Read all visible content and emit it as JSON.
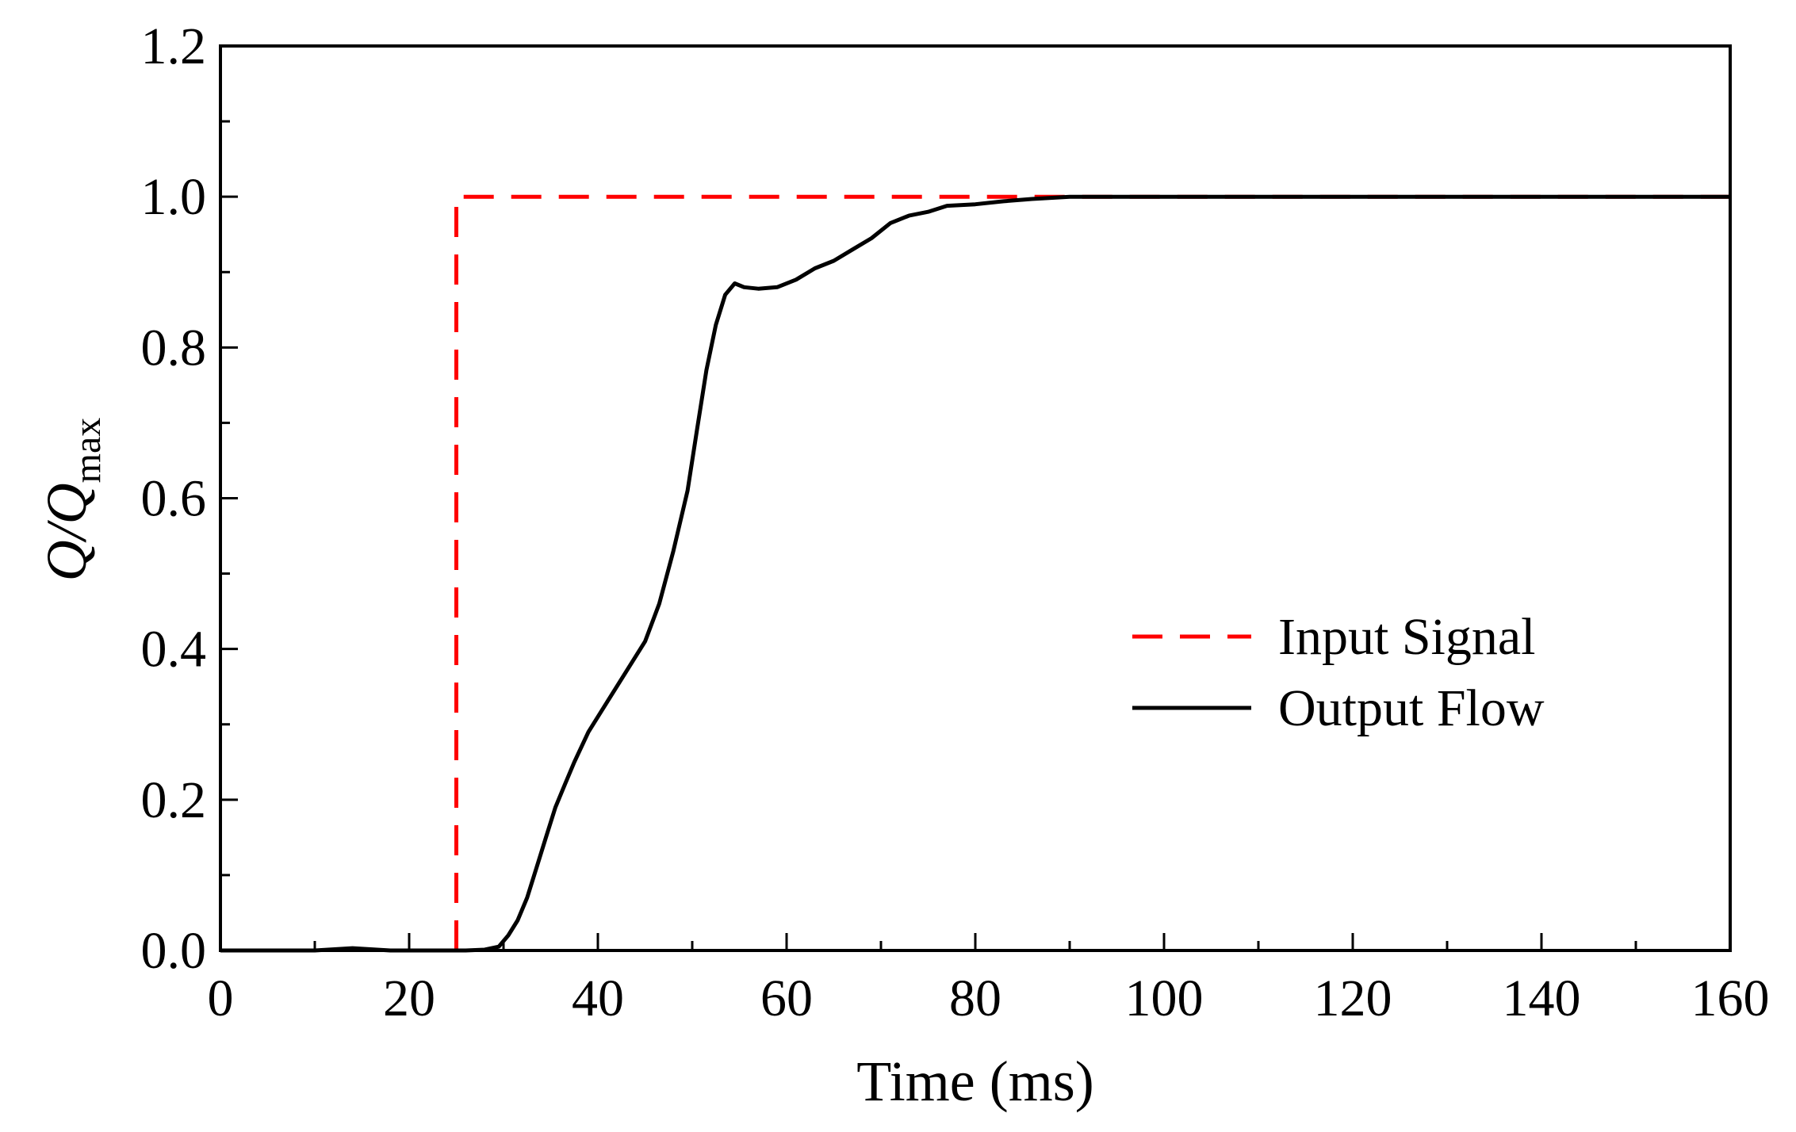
{
  "chart_data": {
    "type": "line",
    "title": "",
    "xlabel": "Time (ms)",
    "ylabel": {
      "main": "Q/Q",
      "subscript": "max"
    },
    "xlim": [
      0,
      160
    ],
    "ylim": [
      0,
      1.2
    ],
    "x_ticks": [
      0,
      20,
      40,
      60,
      80,
      100,
      120,
      140,
      160
    ],
    "x_tick_labels": [
      "0",
      "20",
      "40",
      "60",
      "80",
      "100",
      "120",
      "140",
      "160"
    ],
    "y_ticks": [
      0.0,
      0.2,
      0.4,
      0.6,
      0.8,
      1.0,
      1.2
    ],
    "y_tick_labels": [
      "0.0",
      "0.2",
      "0.4",
      "0.6",
      "0.8",
      "1.0",
      "1.2"
    ],
    "x_minor_step": 10,
    "y_minor_step": 0.1,
    "grid": false,
    "legend_position": "center-right",
    "series": [
      {
        "name": "Input Signal",
        "color": "#ff0000",
        "style": "dashed",
        "x": [
          25,
          25,
          160
        ],
        "y": [
          0.0,
          1.0,
          1.0
        ]
      },
      {
        "name": "Output Flow",
        "color": "#000000",
        "style": "solid",
        "x": [
          0,
          10,
          14,
          18,
          22,
          26,
          28,
          29.5,
          30.5,
          31.5,
          32.5,
          33.5,
          34.5,
          35.5,
          36.5,
          37.5,
          39,
          41,
          43,
          45,
          46.5,
          48,
          49.5,
          50.5,
          51.5,
          52.5,
          53.5,
          54.5,
          55.5,
          57,
          59,
          61,
          63,
          65,
          67,
          69,
          71,
          73,
          75,
          77,
          80,
          83,
          86,
          90,
          95,
          100,
          110,
          120,
          130,
          140,
          150,
          160
        ],
        "y": [
          0.0,
          0.0,
          0.003,
          0.0,
          0.0,
          0.0,
          0.001,
          0.005,
          0.02,
          0.04,
          0.07,
          0.11,
          0.15,
          0.19,
          0.22,
          0.25,
          0.29,
          0.33,
          0.37,
          0.41,
          0.46,
          0.53,
          0.61,
          0.69,
          0.77,
          0.83,
          0.87,
          0.885,
          0.88,
          0.878,
          0.88,
          0.89,
          0.905,
          0.915,
          0.93,
          0.945,
          0.965,
          0.975,
          0.98,
          0.988,
          0.99,
          0.994,
          0.997,
          1.0,
          1.0,
          1.0,
          1.0,
          1.0,
          1.0,
          1.0,
          1.0,
          1.0
        ]
      }
    ]
  }
}
